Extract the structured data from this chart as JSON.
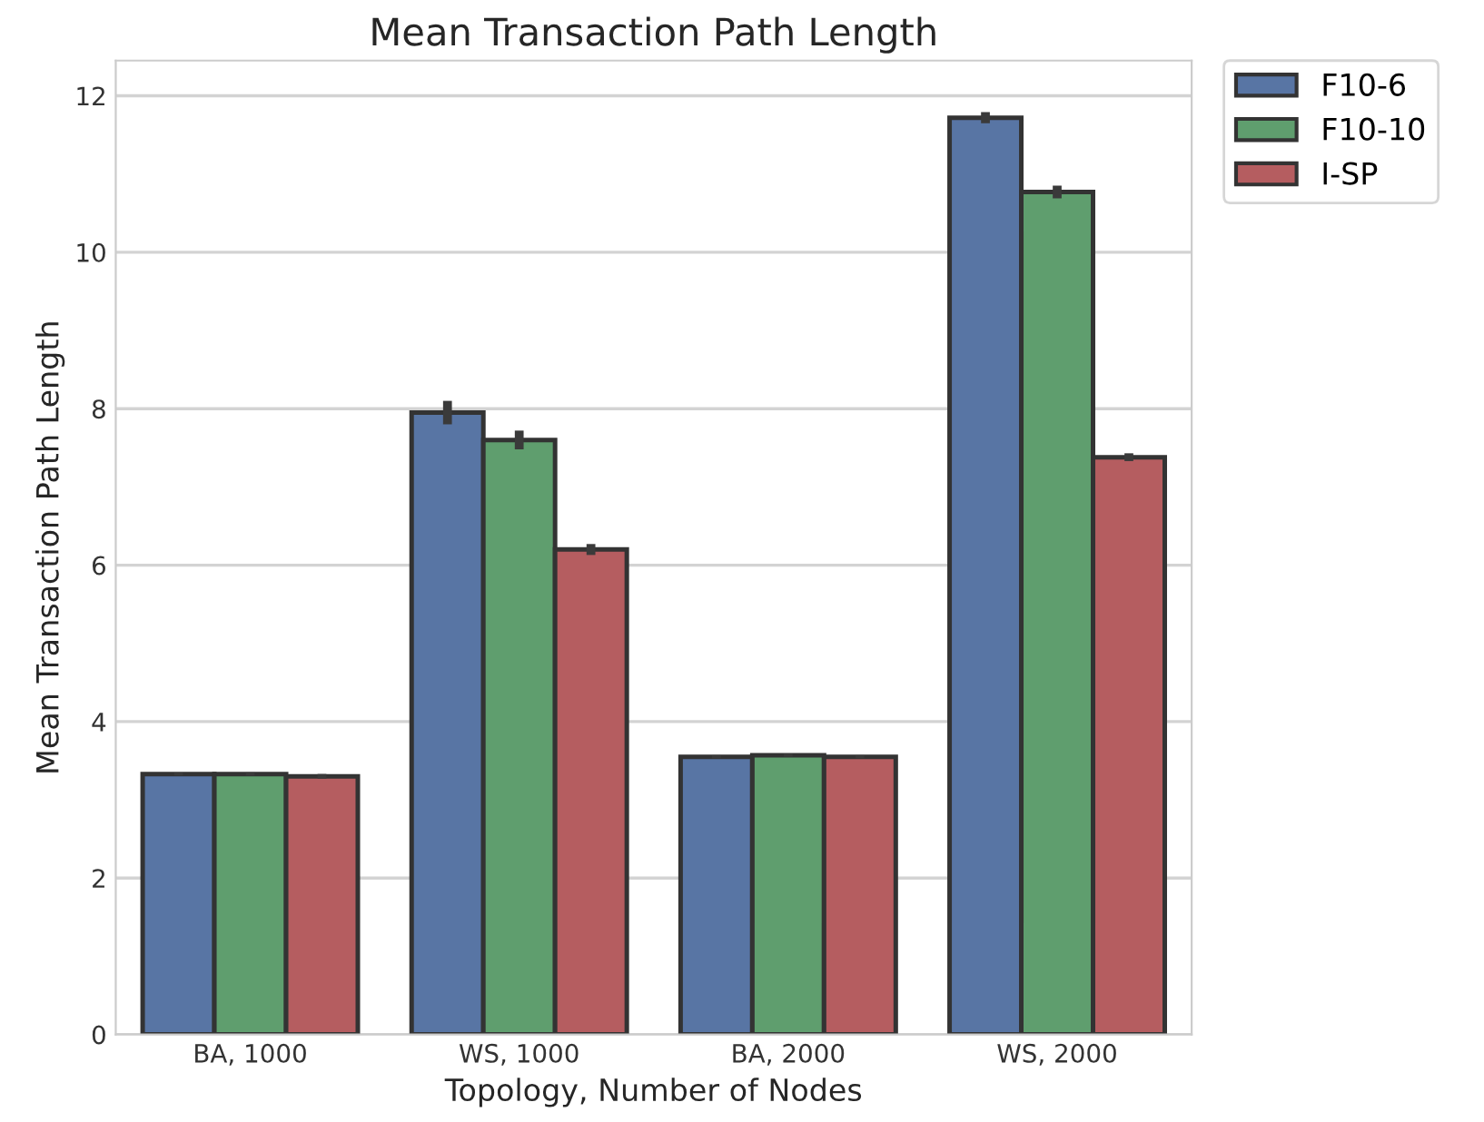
{
  "chart_data": {
    "type": "bar",
    "title": "Mean Transaction Path Length",
    "xlabel": "Topology, Number of Nodes",
    "ylabel": "Mean Transaction Path Length",
    "categories": [
      "BA, 1000",
      "WS, 1000",
      "BA, 2000",
      "WS, 2000"
    ],
    "series": [
      {
        "name": "F10-6",
        "color": "#5875a4",
        "values": [
          3.33,
          7.95,
          3.55,
          11.72
        ],
        "errors": [
          0.02,
          0.15,
          0.02,
          0.07
        ]
      },
      {
        "name": "F10-10",
        "color": "#5f9e6e",
        "values": [
          3.33,
          7.6,
          3.57,
          10.77
        ],
        "errors": [
          0.02,
          0.12,
          0.02,
          0.08
        ]
      },
      {
        "name": "I-SP",
        "color": "#b55d60",
        "values": [
          3.3,
          6.2,
          3.55,
          7.38
        ],
        "errors": [
          0.03,
          0.07,
          0.02,
          0.05
        ]
      }
    ],
    "ylim": [
      0,
      12.45
    ],
    "yticks": [
      0,
      2,
      4,
      6,
      8,
      10,
      12
    ],
    "grid": "y",
    "legend": "top right"
  }
}
